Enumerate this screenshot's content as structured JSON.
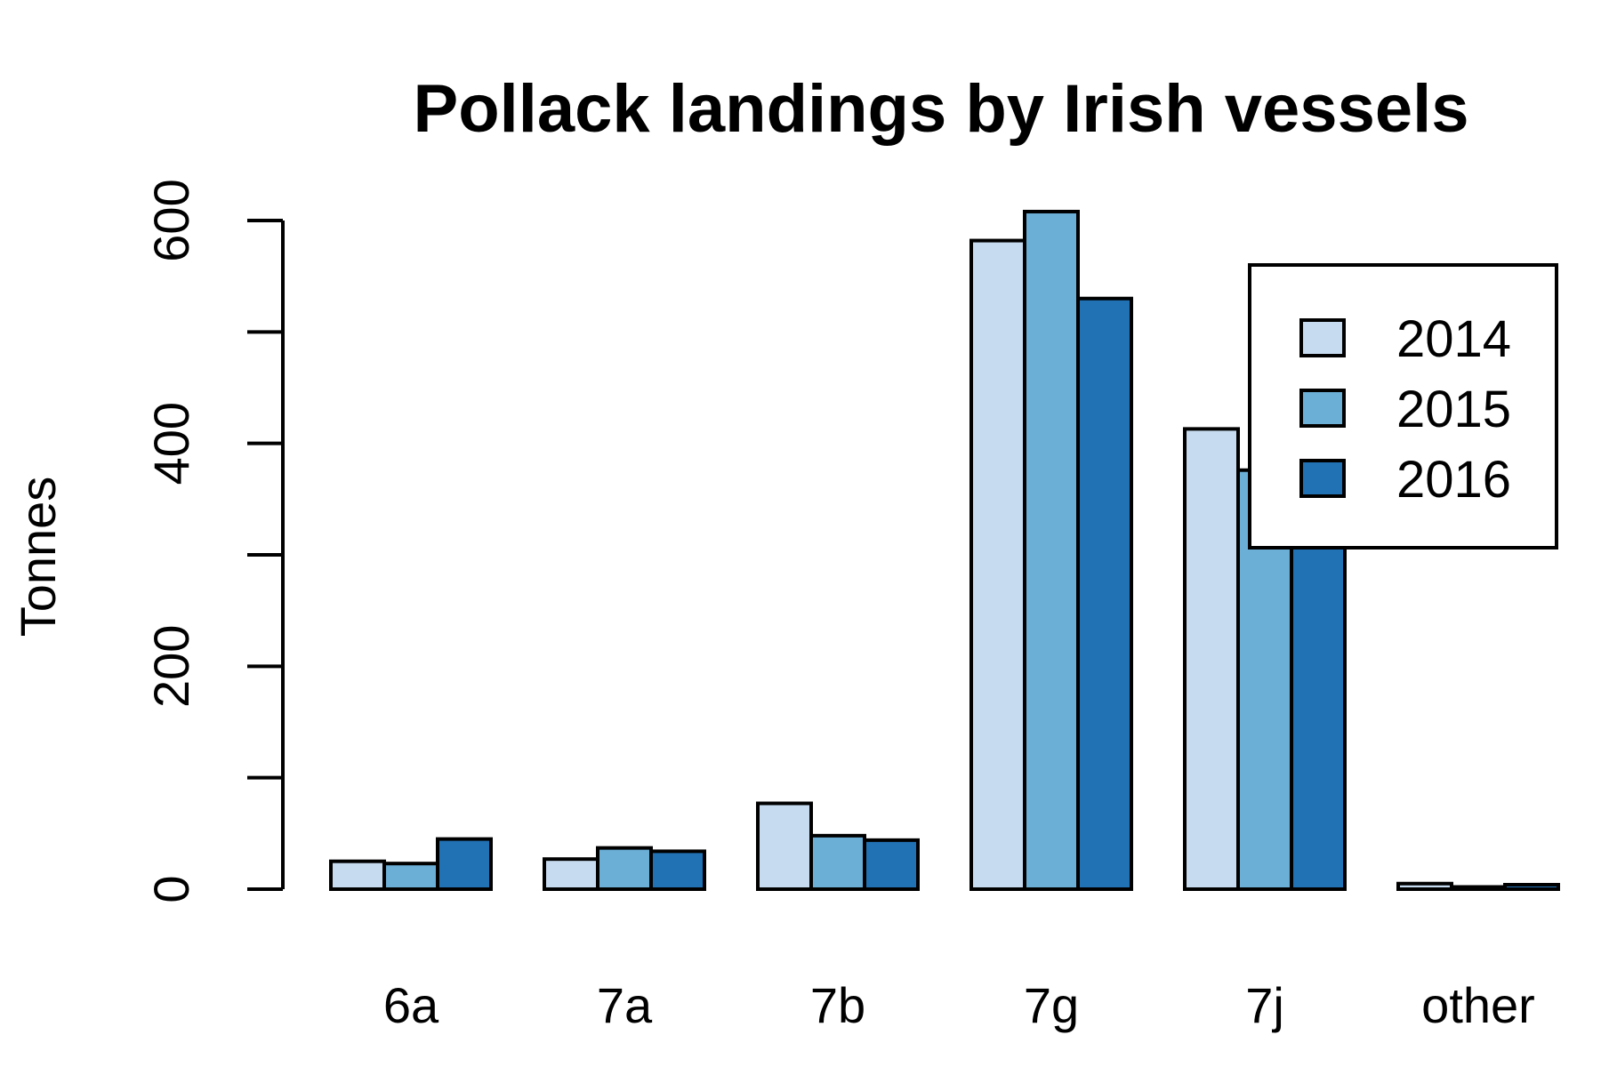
{
  "chart_data": {
    "type": "bar",
    "title": "Pollack landings by Irish vessels",
    "xlabel": "",
    "ylabel": "Tonnes",
    "categories": [
      "6a",
      "7a",
      "7b",
      "7g",
      "7j",
      "other"
    ],
    "series": [
      {
        "name": "2014",
        "color": "#c6dbef",
        "values": [
          25,
          27,
          77,
          582,
          413,
          5
        ]
      },
      {
        "name": "2015",
        "color": "#6baed6",
        "values": [
          23,
          37,
          48,
          608,
          376,
          2
        ]
      },
      {
        "name": "2016",
        "color": "#2171b5",
        "values": [
          45,
          34,
          44,
          530,
          340,
          4
        ]
      }
    ],
    "ylim": [
      0,
      600
    ],
    "yticks": [
      0,
      100,
      200,
      300,
      400,
      500,
      600
    ],
    "ytick_labels": [
      "0",
      "",
      "200",
      "",
      "400",
      "",
      "600"
    ],
    "grid": false,
    "legend_position": "top-right"
  }
}
